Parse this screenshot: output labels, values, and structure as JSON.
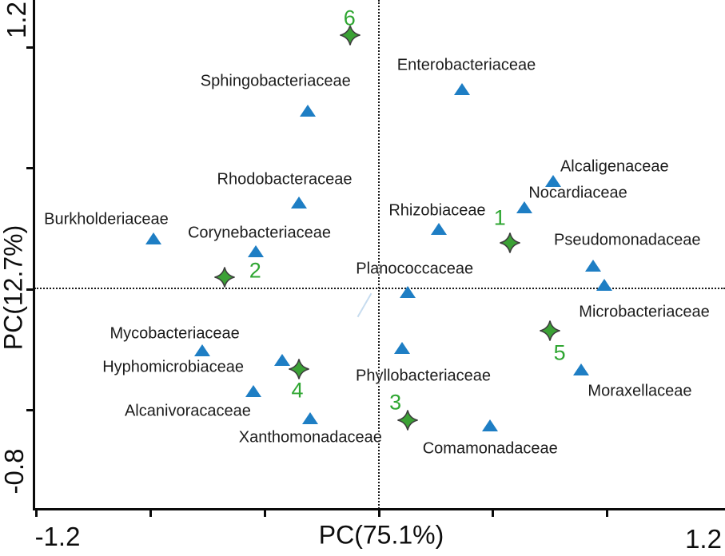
{
  "colors": {
    "family_marker": "#1e7ec4",
    "site_marker_fill": "#3ba135",
    "site_marker_stroke": "#3d3d3d",
    "site_number": "#2fa632",
    "text": "#1c1c1c",
    "axis": "#0a0a0a"
  },
  "chart_data": {
    "type": "scatter",
    "title": "",
    "xlabel": "PC(75.1%)",
    "ylabel": "PC(12.7%)",
    "grid": "dotted zero lines only",
    "legend": "none",
    "x_axis": {
      "range": [
        -1.2,
        1.2
      ],
      "ticks": [
        -1.2,
        -0.8,
        -0.4,
        0,
        0.4,
        0.8
      ],
      "end_labels": [
        "-1.2",
        "1.2"
      ]
    },
    "y_axis": {
      "range": [
        -0.8,
        1.2
      ],
      "ticks": [
        1.0,
        0.5,
        0,
        -0.5
      ],
      "end_labels": [
        "-0.8",
        "1.2"
      ]
    },
    "series": [
      {
        "name": "bacterial-families",
        "marker": "triangle",
        "color": "#1e7ec4",
        "points": [
          {
            "label": "Sphingobacteriaceae",
            "x": -0.25,
            "y": 0.74,
            "label_offset": [
              -40,
              -36
            ]
          },
          {
            "label": "Enterobacteriaceae",
            "x": 0.29,
            "y": 0.83,
            "label_offset": [
              6,
              -29
            ]
          },
          {
            "label": "Rhodobacteraceae",
            "x": -0.28,
            "y": 0.36,
            "label_offset": [
              -18,
              -28
            ]
          },
          {
            "label": "Burkholderiaceae",
            "x": -0.79,
            "y": 0.21,
            "label_offset": [
              -59,
              -23
            ]
          },
          {
            "label": "Corynebacteriaceae",
            "x": -0.43,
            "y": 0.16,
            "label_offset": [
              4,
              -22
            ]
          },
          {
            "label": "Alcaligenaceae",
            "x": 0.61,
            "y": 0.45,
            "label_offset": [
              77,
              -17
            ]
          },
          {
            "label": "Nocardiaceae",
            "x": 0.51,
            "y": 0.34,
            "label_offset": [
              67,
              -17
            ]
          },
          {
            "label": "Rhizobiaceae",
            "x": 0.21,
            "y": 0.25,
            "label_offset": [
              -2,
              -22
            ]
          },
          {
            "label": "Pseudomonadaceae",
            "x": 0.75,
            "y": 0.1,
            "label_offset": [
              43,
              -31
            ]
          },
          {
            "label": "Microbacteriaceae",
            "x": 0.79,
            "y": 0.02,
            "label_offset": [
              50,
              35
            ]
          },
          {
            "label": "Planococcaceae",
            "x": 0.1,
            "y": -0.01,
            "label_offset": [
              9,
              -28
            ]
          },
          {
            "label": "Phyllobacteriaceae",
            "x": 0.08,
            "y": -0.24,
            "label_offset": [
              27,
              36
            ]
          },
          {
            "label": "Mycobacteriaceae",
            "x": -0.62,
            "y": -0.25,
            "label_offset": [
              -34,
              -20
            ]
          },
          {
            "label": "Hyphomicrobiaceae",
            "x": -0.34,
            "y": -0.29,
            "label_offset": [
              -136,
              10
            ]
          },
          {
            "label": "Alcanivoracaceae",
            "x": -0.44,
            "y": -0.42,
            "label_offset": [
              -82,
              26
            ]
          },
          {
            "label": "Xanthomonadaceae",
            "x": -0.24,
            "y": -0.53,
            "label_offset": [
              0,
              25
            ]
          },
          {
            "label": "Moraxellaceae",
            "x": 0.71,
            "y": -0.33,
            "label_offset": [
              73,
              28
            ]
          },
          {
            "label": "Comamonadaceae",
            "x": 0.39,
            "y": -0.56,
            "label_offset": [
              0,
              30
            ]
          }
        ]
      },
      {
        "name": "sites",
        "marker": "four-point-star",
        "color": "#3ba135",
        "points": [
          {
            "label": "1",
            "x": 0.46,
            "y": 0.19,
            "label_offset": [
              -13,
              -31
            ]
          },
          {
            "label": "2",
            "x": -0.54,
            "y": 0.05,
            "label_offset": [
              38,
              -8
            ]
          },
          {
            "label": "3",
            "x": 0.1,
            "y": -0.54,
            "label_offset": [
              -15,
              -22
            ]
          },
          {
            "label": "4",
            "x": -0.28,
            "y": -0.33,
            "label_offset": [
              -2,
              27
            ]
          },
          {
            "label": "5",
            "x": 0.6,
            "y": -0.17,
            "label_offset": [
              12,
              28
            ]
          },
          {
            "label": "6",
            "x": -0.1,
            "y": 1.05,
            "label_offset": [
              -1,
              -21
            ]
          }
        ]
      }
    ]
  }
}
